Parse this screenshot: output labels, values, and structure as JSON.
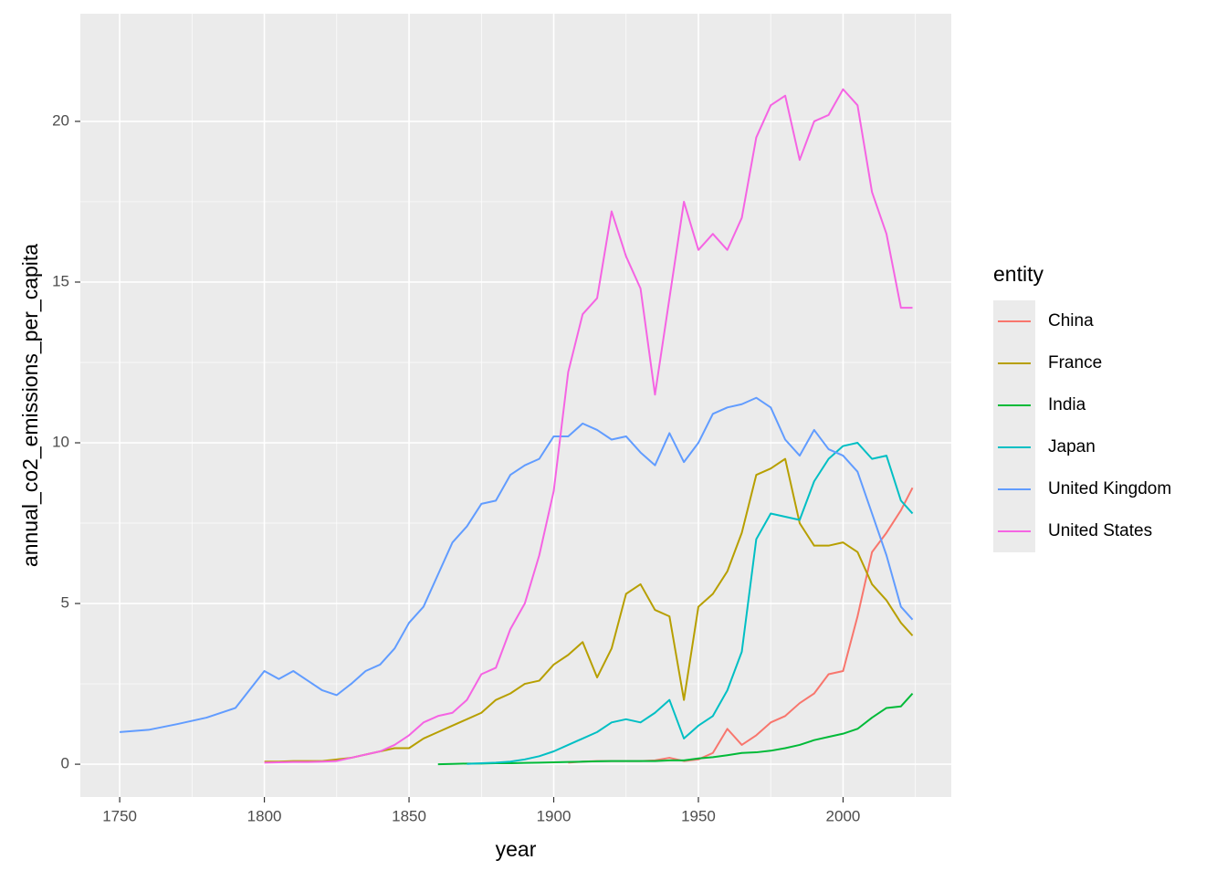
{
  "chart_data": {
    "type": "line",
    "x_label": "year",
    "y_label": "annual_co2_emissions_per_capita",
    "legend_title": "entity",
    "x": [
      1750,
      1760,
      1770,
      1780,
      1790,
      1800,
      1805,
      1810,
      1815,
      1820,
      1825,
      1830,
      1835,
      1840,
      1845,
      1850,
      1855,
      1860,
      1865,
      1870,
      1875,
      1880,
      1885,
      1890,
      1895,
      1900,
      1905,
      1910,
      1915,
      1920,
      1925,
      1930,
      1935,
      1940,
      1945,
      1950,
      1955,
      1960,
      1965,
      1970,
      1975,
      1980,
      1985,
      1990,
      1995,
      2000,
      2005,
      2010,
      2015,
      2020,
      2024
    ],
    "series": [
      {
        "name": "China",
        "color": "#F8766D",
        "values": [
          null,
          null,
          null,
          null,
          null,
          null,
          null,
          null,
          null,
          null,
          null,
          null,
          null,
          null,
          null,
          null,
          null,
          null,
          null,
          null,
          null,
          null,
          null,
          null,
          null,
          null,
          0.05,
          0.08,
          0.1,
          0.1,
          0.1,
          0.1,
          0.12,
          0.2,
          0.1,
          0.15,
          0.35,
          1.1,
          0.6,
          0.9,
          1.3,
          1.5,
          1.9,
          2.2,
          2.8,
          2.9,
          4.6,
          6.6,
          7.2,
          7.9,
          8.6
        ]
      },
      {
        "name": "France",
        "color": "#B79F00",
        "values": [
          null,
          null,
          null,
          null,
          null,
          0.08,
          0.08,
          0.1,
          0.1,
          0.1,
          0.15,
          0.2,
          0.3,
          0.4,
          0.5,
          0.5,
          0.8,
          1.0,
          1.2,
          1.4,
          1.6,
          2.0,
          2.2,
          2.5,
          2.6,
          3.1,
          3.4,
          3.8,
          2.7,
          3.6,
          5.3,
          5.6,
          4.8,
          4.6,
          2.0,
          4.9,
          5.3,
          6.0,
          7.2,
          9.0,
          9.2,
          9.5,
          7.5,
          6.8,
          6.8,
          6.9,
          6.6,
          5.6,
          5.1,
          4.4,
          4.0
        ]
      },
      {
        "name": "India",
        "color": "#00BA38",
        "values": [
          null,
          null,
          null,
          null,
          null,
          null,
          null,
          null,
          null,
          null,
          null,
          null,
          null,
          null,
          null,
          null,
          null,
          0.0,
          0.01,
          0.02,
          0.02,
          0.03,
          0.03,
          0.04,
          0.05,
          0.06,
          0.07,
          0.08,
          0.09,
          0.1,
          0.1,
          0.1,
          0.1,
          0.12,
          0.12,
          0.18,
          0.22,
          0.28,
          0.35,
          0.37,
          0.42,
          0.5,
          0.6,
          0.75,
          0.85,
          0.95,
          1.1,
          1.45,
          1.75,
          1.8,
          2.2
        ]
      },
      {
        "name": "Japan",
        "color": "#00BFC4",
        "values": [
          null,
          null,
          null,
          null,
          null,
          null,
          null,
          null,
          null,
          null,
          null,
          null,
          null,
          null,
          null,
          null,
          null,
          null,
          null,
          0.01,
          0.03,
          0.05,
          0.08,
          0.15,
          0.25,
          0.4,
          0.6,
          0.8,
          1.0,
          1.3,
          1.4,
          1.3,
          1.6,
          2.0,
          0.8,
          1.2,
          1.5,
          2.3,
          3.5,
          7.0,
          7.8,
          7.7,
          7.6,
          8.8,
          9.5,
          9.9,
          10.0,
          9.5,
          9.6,
          8.2,
          7.8
        ]
      },
      {
        "name": "United Kingdom",
        "color": "#619CFF",
        "values": [
          1.0,
          1.07,
          1.25,
          1.45,
          1.75,
          2.9,
          2.65,
          2.9,
          2.6,
          2.3,
          2.15,
          2.5,
          2.9,
          3.1,
          3.6,
          4.4,
          4.9,
          5.9,
          6.9,
          7.4,
          8.1,
          8.2,
          9.0,
          9.3,
          9.5,
          10.2,
          10.2,
          10.6,
          10.4,
          10.1,
          10.2,
          9.7,
          9.3,
          10.3,
          9.4,
          10.0,
          10.9,
          11.1,
          11.2,
          11.4,
          11.1,
          10.1,
          9.6,
          10.4,
          9.8,
          9.6,
          9.1,
          7.8,
          6.5,
          4.9,
          4.5
        ]
      },
      {
        "name": "United States",
        "color": "#F564E3",
        "values": [
          null,
          null,
          null,
          null,
          null,
          0.05,
          0.06,
          0.07,
          0.07,
          0.08,
          0.1,
          0.2,
          0.3,
          0.4,
          0.6,
          0.9,
          1.3,
          1.5,
          1.6,
          2.0,
          2.8,
          3.0,
          4.2,
          5.0,
          6.5,
          8.5,
          12.2,
          14.0,
          14.5,
          17.2,
          15.8,
          14.8,
          11.5,
          14.5,
          17.5,
          16.0,
          16.5,
          16.0,
          17.0,
          19.5,
          20.5,
          20.8,
          18.8,
          20.0,
          20.2,
          21.0,
          20.5,
          17.8,
          16.5,
          14.2,
          14.2
        ]
      }
    ],
    "xlim": [
      1736.4,
      2037.4
    ],
    "xticks": [
      1750,
      1800,
      1850,
      1900,
      1950,
      2000
    ],
    "ylim": [
      -1.02,
      23.35
    ],
    "yticks": [
      0,
      5,
      10,
      15,
      20
    ],
    "grid": true
  }
}
